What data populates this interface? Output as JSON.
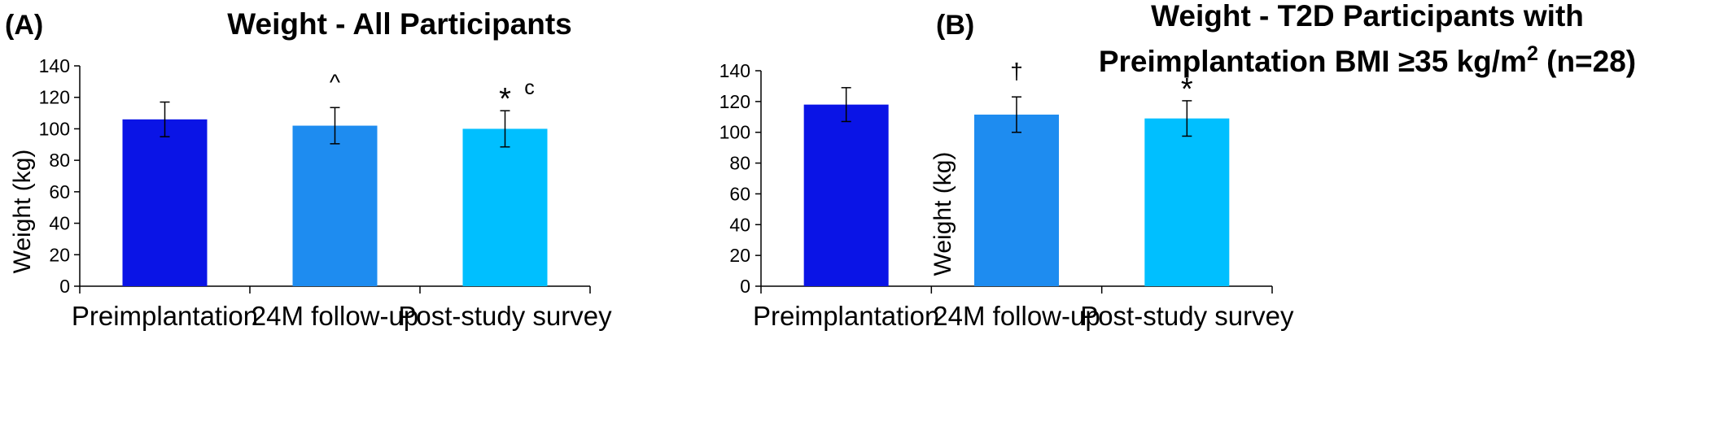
{
  "chart_data": [
    {
      "type": "bar",
      "panel_label": "(A)",
      "title_lines": [
        "Weight - All Participants"
      ],
      "ylabel": "Weight (kg)",
      "xlabel": "",
      "ylim": [
        0,
        140
      ],
      "yticks": [
        0,
        20,
        40,
        60,
        80,
        100,
        120,
        140
      ],
      "categories": [
        "Preimplantation",
        "24M follow-up",
        "Post-study survey"
      ],
      "values": [
        106,
        102,
        100
      ],
      "errors": [
        11,
        11.5,
        11.5
      ],
      "colors": [
        "#0A14E6",
        "#1E8CF0",
        "#00BFFF"
      ],
      "annotations": [
        {
          "text": "",
          "extra": ""
        },
        {
          "text": "^",
          "extra": ""
        },
        {
          "text": "*",
          "extra": "c"
        }
      ],
      "grid": false,
      "legend": "none"
    },
    {
      "type": "bar",
      "panel_label": "(B)",
      "title_lines": [
        "Weight - T2D Participants with",
        "Preimplantation BMI ≥35 kg/m",
        "2",
        " (n=28)"
      ],
      "ylabel": "Weight (kg)",
      "xlabel": "",
      "ylim": [
        0,
        140
      ],
      "yticks": [
        0,
        20,
        40,
        60,
        80,
        100,
        120,
        140
      ],
      "categories": [
        "Preimplantation",
        "24M follow-up",
        "Post-study survey"
      ],
      "values": [
        118,
        111.5,
        109
      ],
      "errors": [
        11,
        11.5,
        11.5
      ],
      "colors": [
        "#0A14E6",
        "#1E8CF0",
        "#00BFFF"
      ],
      "annotations": [
        {
          "text": "",
          "extra": ""
        },
        {
          "text": "†",
          "extra": ""
        },
        {
          "text": "*",
          "extra": ""
        }
      ],
      "grid": false,
      "legend": "none"
    }
  ]
}
